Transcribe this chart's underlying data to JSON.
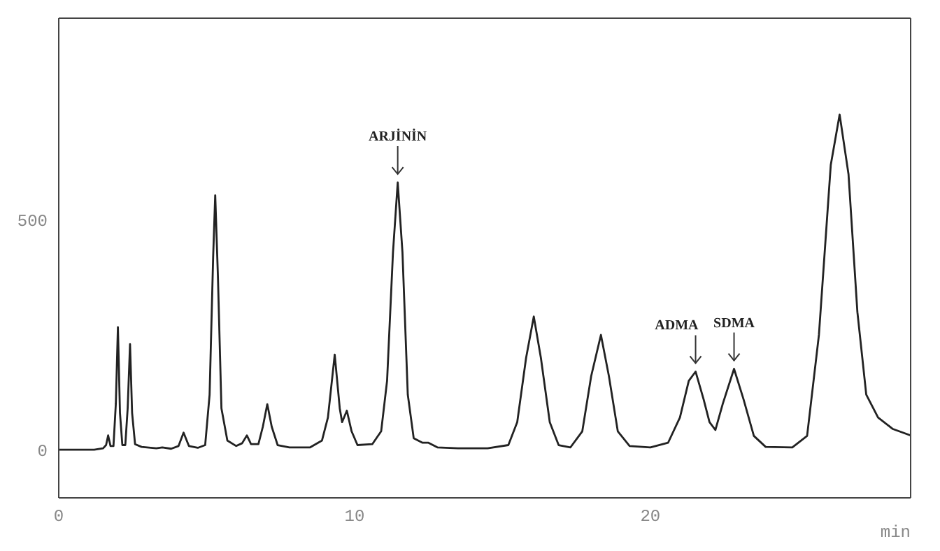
{
  "chart_data": {
    "type": "line",
    "xlabel": "min",
    "xlim": [
      0,
      28.8
    ],
    "xticks": [
      0,
      10,
      20
    ],
    "ylim": [
      -105,
      940
    ],
    "yticks": [
      0,
      500
    ],
    "legend": false,
    "marker": "none",
    "line_style": "solid",
    "annotations": [
      {
        "text": "ARJİNİN",
        "x": 11.46,
        "y": 582
      },
      {
        "text": "ADMA",
        "x": 21.53,
        "y": 170
      },
      {
        "text": "SDMA",
        "x": 22.83,
        "y": 176
      }
    ],
    "series": [
      {
        "color": "#222222",
        "x": [
          0,
          1.2,
          1.5,
          1.6,
          1.67,
          1.75,
          1.85,
          1.93,
          2.0,
          2.07,
          2.15,
          2.25,
          2.33,
          2.41,
          2.48,
          2.58,
          2.8,
          3.3,
          3.5,
          3.8,
          4.05,
          4.22,
          4.4,
          4.7,
          4.95,
          5.1,
          5.22,
          5.29,
          5.38,
          5.5,
          5.7,
          6.0,
          6.2,
          6.36,
          6.5,
          6.75,
          6.9,
          7.05,
          7.2,
          7.4,
          7.8,
          8.5,
          8.9,
          9.1,
          9.33,
          9.5,
          9.58,
          9.74,
          9.9,
          10.1,
          10.6,
          10.9,
          11.1,
          11.3,
          11.46,
          11.62,
          11.8,
          12.0,
          12.3,
          12.5,
          12.8,
          13.5,
          14.5,
          15.2,
          15.5,
          15.8,
          16.06,
          16.3,
          16.6,
          16.9,
          17.3,
          17.7,
          18.0,
          18.33,
          18.6,
          18.9,
          19.3,
          20.0,
          20.6,
          21.0,
          21.3,
          21.53,
          21.8,
          22.0,
          22.2,
          22.45,
          22.83,
          23.15,
          23.5,
          23.9,
          24.8,
          25.3,
          25.7,
          26.1,
          26.4,
          26.7,
          27.0,
          27.3,
          27.7,
          28.2,
          28.8
        ],
        "values": [
          0,
          0,
          3,
          10,
          31,
          8,
          8,
          100,
          267,
          80,
          10,
          10,
          90,
          230,
          80,
          12,
          6,
          3,
          5,
          2,
          8,
          37,
          8,
          4,
          10,
          120,
          420,
          554,
          380,
          90,
          20,
          8,
          14,
          31,
          12,
          12,
          50,
          99,
          50,
          10,
          5,
          5,
          20,
          70,
          207,
          90,
          60,
          85,
          40,
          10,
          12,
          40,
          150,
          430,
          582,
          430,
          120,
          25,
          15,
          15,
          5,
          3,
          3,
          10,
          60,
          200,
          290,
          200,
          60,
          10,
          5,
          40,
          160,
          250,
          160,
          40,
          8,
          5,
          15,
          70,
          150,
          170,
          110,
          60,
          43,
          100,
          176,
          110,
          30,
          6,
          5,
          30,
          250,
          620,
          730,
          600,
          300,
          120,
          70,
          45,
          31
        ]
      }
    ]
  }
}
